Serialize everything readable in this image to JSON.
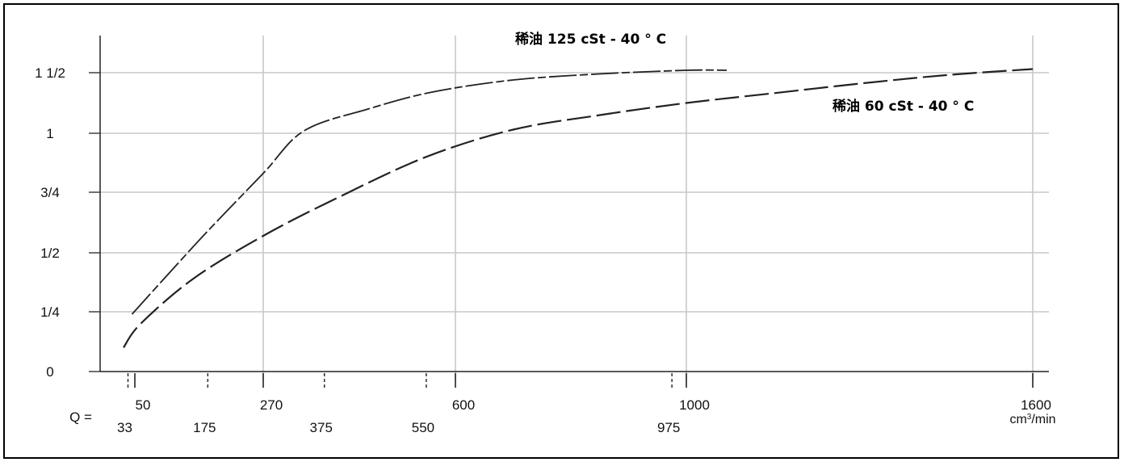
{
  "chart_data": {
    "type": "line",
    "title": "",
    "xlabel": "Q =",
    "ylabel": "",
    "x_unit": "cm",
    "x_unit_exp": "3",
    "x_unit_tail": "/min",
    "xlim": [
      0,
      1600
    ],
    "ylim": [
      0,
      1.5
    ],
    "grid": true,
    "x_ticks_upper": [
      {
        "value": 50,
        "label": "50"
      },
      {
        "value": 270,
        "label": "270"
      },
      {
        "value": 600,
        "label": "600"
      },
      {
        "value": 1000,
        "label": "1000"
      },
      {
        "value": 1600,
        "label": "1600"
      }
    ],
    "x_ticks_lower": [
      {
        "value": 33,
        "label": "33"
      },
      {
        "value": 175,
        "label": "175"
      },
      {
        "value": 375,
        "label": "375"
      },
      {
        "value": 550,
        "label": "550"
      },
      {
        "value": 975,
        "label": "975"
      }
    ],
    "y_ticks": [
      {
        "value": 0,
        "label": "0"
      },
      {
        "value": 0.25,
        "label": "1/4"
      },
      {
        "value": 0.5,
        "label": "1/2"
      },
      {
        "value": 0.75,
        "label": "3/4"
      },
      {
        "value": 1,
        "label": "1"
      },
      {
        "value": 1.5,
        "label": "1 1/2"
      }
    ],
    "series": [
      {
        "name": "稀油 125 cSt - 40 ° C",
        "dash": "long-short",
        "x": [
          43,
          100,
          175,
          270,
          340,
          450,
          560,
          700,
          850,
          1000,
          1070
        ],
        "y": [
          0.24,
          0.39,
          0.59,
          0.83,
          1.02,
          1.2,
          1.34,
          1.44,
          1.49,
          1.52,
          1.52
        ]
      },
      {
        "name": "稀油 60 cSt - 40 ° C",
        "dash": "long",
        "x": [
          22,
          60,
          150,
          270,
          400,
          550,
          700,
          850,
          1000,
          1150,
          1300,
          1450,
          1600
        ],
        "y": [
          0.1,
          0.2,
          0.39,
          0.57,
          0.73,
          0.9,
          1.03,
          1.15,
          1.25,
          1.33,
          1.41,
          1.48,
          1.53
        ]
      }
    ],
    "annotations": [
      {
        "series": 0,
        "text": "稀油 125 cSt - 40 ° C",
        "position": "top-center"
      },
      {
        "series": 1,
        "text": "稀油 60 cSt - 40 ° C",
        "position": "right"
      }
    ]
  }
}
